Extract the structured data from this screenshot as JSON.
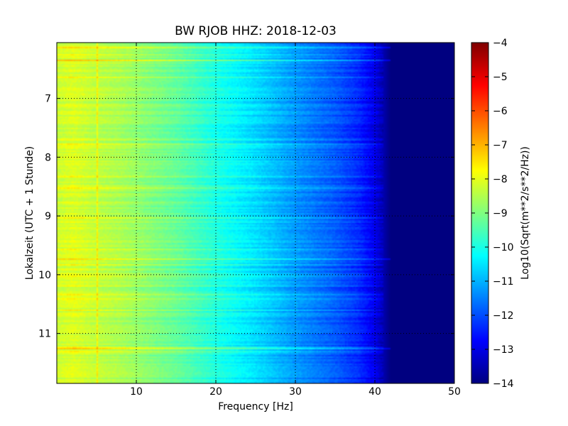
{
  "chart_data": {
    "type": "heatmap",
    "title": "BW RJOB HHZ: 2018-12-03",
    "xlabel": "Frequency [Hz]",
    "ylabel": "Lokalzeit (UTC + 1 Stunde)",
    "xlim": [
      0,
      50
    ],
    "ylim": [
      11.85,
      6.05
    ],
    "y_inverted": true,
    "x_ticks": [
      10,
      20,
      30,
      40,
      50
    ],
    "x_tick_labels": [
      "10",
      "20",
      "30",
      "40",
      "50"
    ],
    "y_ticks": [
      7,
      8,
      9,
      10,
      11
    ],
    "y_tick_labels": [
      "7",
      "8",
      "9",
      "10",
      "11"
    ],
    "grid": true,
    "colormap": "jet",
    "colorbar": {
      "label": "Log10(Sqrt(m**2/s**2/Hz))",
      "range": [
        -14,
        -4
      ],
      "ticks": [
        -4,
        -5,
        -6,
        -7,
        -8,
        -9,
        -10,
        -11,
        -12,
        -13,
        -14
      ],
      "tick_labels": [
        "−4",
        "−5",
        "−6",
        "−7",
        "−8",
        "−9",
        "−10",
        "−11",
        "−12",
        "−13",
        "−14"
      ]
    },
    "spectrum_profile": {
      "frequency_hz": [
        0,
        2,
        5,
        8,
        10,
        15,
        20,
        25,
        30,
        35,
        38,
        40,
        42,
        50
      ],
      "log10_amplitude": [
        -8.3,
        -8.1,
        -8.4,
        -8.6,
        -8.8,
        -9.3,
        -10.0,
        -10.6,
        -11.3,
        -11.9,
        -12.4,
        -13.0,
        -14.0,
        -14.0
      ]
    },
    "features": {
      "vertical_line_hz": [
        5.0
      ],
      "bright_row_hours": [
        6.12,
        6.35,
        9.72,
        11.24
      ]
    }
  }
}
